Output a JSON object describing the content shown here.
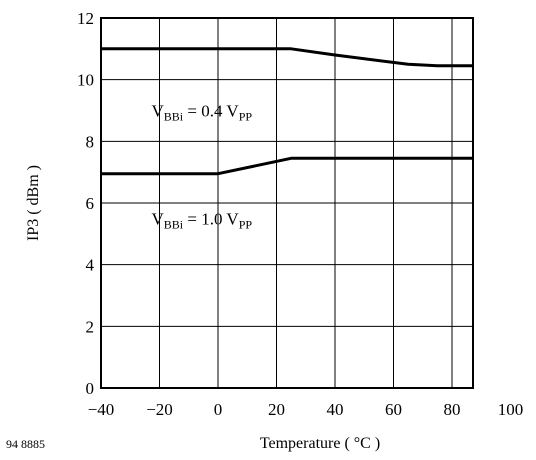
{
  "chart_data": {
    "type": "line",
    "title": "",
    "xlabel": "Temperature ( °C )",
    "ylabel": "IP3 ( dBm )",
    "xlim": [
      -40,
      100
    ],
    "ylim": [
      0,
      12
    ],
    "x_ticks": [
      -40,
      -20,
      0,
      20,
      40,
      60,
      80,
      100
    ],
    "y_ticks": [
      0,
      2,
      4,
      6,
      8,
      10,
      12
    ],
    "x_tick_labels": [
      "−40",
      "−20",
      "0",
      "20",
      "40",
      "60",
      "80",
      "100"
    ],
    "y_tick_labels": [
      "0",
      "2",
      "4",
      "6",
      "8",
      "10",
      "12"
    ],
    "grid": true,
    "figure_code": "94 8885",
    "series": [
      {
        "color": "#000000",
        "x": [
          -40,
          25,
          40,
          65,
          75,
          87
        ],
        "y": [
          11.0,
          11.0,
          10.8,
          10.5,
          10.45,
          10.45
        ]
      },
      {
        "color": "#000000",
        "x": [
          -40,
          0,
          25,
          87
        ],
        "y": [
          6.95,
          6.95,
          7.45,
          7.45
        ]
      }
    ],
    "annotations": [
      {
        "main": "V",
        "sub": "BBi",
        "mid": " = 0.4 V",
        "sub2": "PP",
        "x": -20,
        "y": 9.0
      },
      {
        "main": "V",
        "sub": "BBi",
        "mid": " = 1.0 V",
        "sub2": "PP",
        "x": -20,
        "y": 5.5
      }
    ]
  }
}
